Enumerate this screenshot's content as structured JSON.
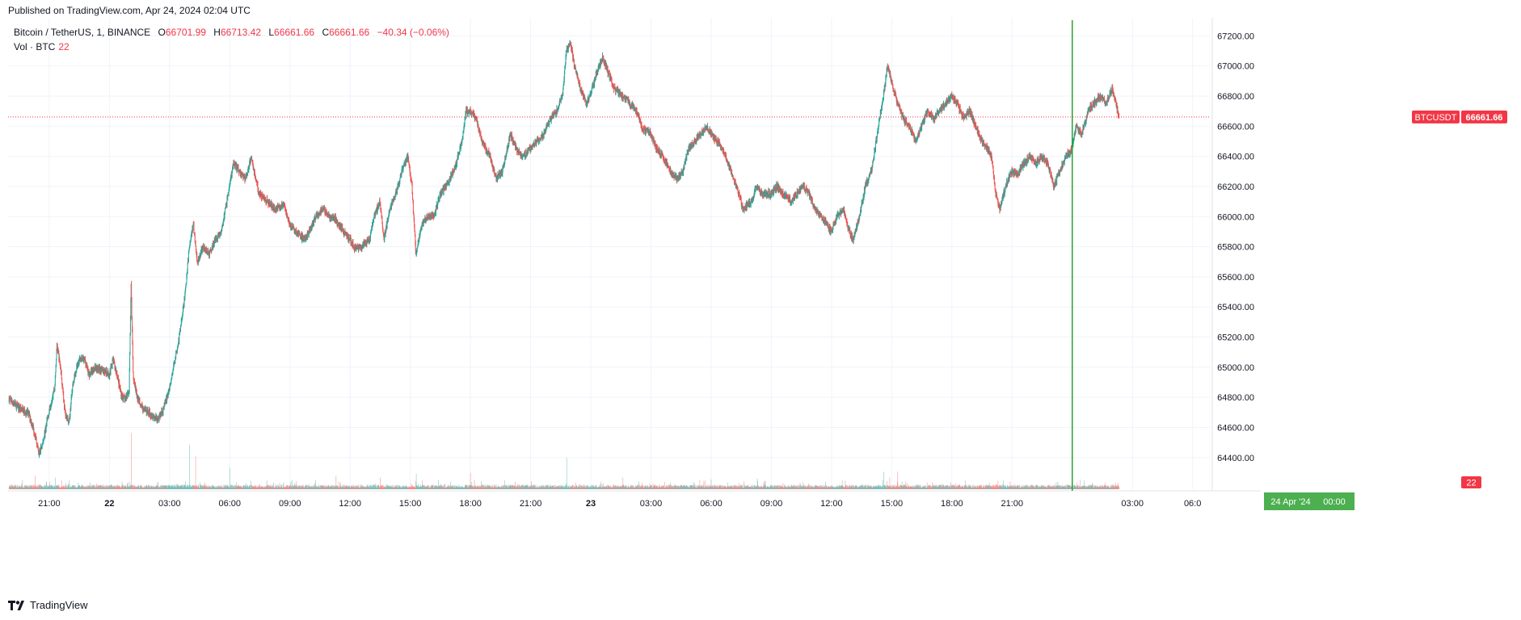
{
  "header": {
    "published": "Published on TradingView.com, Apr 24, 2024 02:04 UTC"
  },
  "legend": {
    "symbol": "Bitcoin / TetherUS, 1, BINANCE",
    "o_label": "O",
    "o": "66701.99",
    "h_label": "H",
    "h": "66713.42",
    "l_label": "L",
    "l": "66661.66",
    "c_label": "C",
    "c": "66661.66",
    "change": "−40.34 (−0.06%)",
    "vol_label": "Vol · BTC",
    "vol_value": "22"
  },
  "footer": {
    "brand": "TradingView"
  },
  "colors": {
    "up": "#26a69a",
    "down": "#ef5350",
    "grid": "#f0f3fa",
    "axis_text": "#131722",
    "price_line": "#f23645",
    "crosshair": "#2ba02b",
    "label_green": "#4caf50",
    "label_red": "#f23645"
  },
  "chart_data": {
    "type": "candlestick",
    "interval": "1m",
    "symbol": "BTCUSDT",
    "exchange": "BINANCE",
    "y_axis": {
      "ticks": [
        "67200.00",
        "67000.00",
        "66800.00",
        "66600.00",
        "66400.00",
        "66200.00",
        "66000.00",
        "65800.00",
        "65600.00",
        "65400.00",
        "65200.00",
        "65000.00",
        "64800.00",
        "64600.00",
        "64400.00"
      ],
      "ylim": [
        64190,
        67320
      ]
    },
    "x_axis": {
      "ticks": [
        {
          "label": "21:00",
          "hour": 21,
          "bold": false
        },
        {
          "label": "22",
          "hour": 24,
          "bold": true
        },
        {
          "label": "03:00",
          "hour": 27,
          "bold": false
        },
        {
          "label": "06:00",
          "hour": 30,
          "bold": false
        },
        {
          "label": "09:00",
          "hour": 33,
          "bold": false
        },
        {
          "label": "12:00",
          "hour": 36,
          "bold": false
        },
        {
          "label": "15:00",
          "hour": 39,
          "bold": false
        },
        {
          "label": "18:00",
          "hour": 42,
          "bold": false
        },
        {
          "label": "21:00",
          "hour": 45,
          "bold": false
        },
        {
          "label": "23",
          "hour": 48,
          "bold": true
        },
        {
          "label": "03:00",
          "hour": 51,
          "bold": false
        },
        {
          "label": "06:00",
          "hour": 54,
          "bold": false
        },
        {
          "label": "09:00",
          "hour": 57,
          "bold": false
        },
        {
          "label": "12:00",
          "hour": 60,
          "bold": false
        },
        {
          "label": "15:00",
          "hour": 63,
          "bold": false
        },
        {
          "label": "18:00",
          "hour": 66,
          "bold": false
        },
        {
          "label": "21:00",
          "hour": 69,
          "bold": false
        },
        {
          "label": "03:00",
          "hour": 75,
          "bold": false
        },
        {
          "label": "06:0",
          "hour": 78,
          "bold": false
        }
      ],
      "hour_range": [
        18.95,
        78.9
      ],
      "hour_unit": "hours since Apr 21 00:00 UTC"
    },
    "crosshair": {
      "hour": 72,
      "label_date": "24 Apr '24",
      "label_time": "00:00"
    },
    "last_price": {
      "symbol_label": "BTCUSDT",
      "value": 66661.66,
      "value_label": "66661.66"
    },
    "last_volume": {
      "label": "22"
    },
    "price_path": [
      [
        19.0,
        64790
      ],
      [
        19.5,
        64730
      ],
      [
        20.0,
        64690
      ],
      [
        20.3,
        64560
      ],
      [
        20.5,
        64420
      ],
      [
        20.7,
        64500
      ],
      [
        21.0,
        64700
      ],
      [
        21.3,
        64880
      ],
      [
        21.4,
        65150
      ],
      [
        21.6,
        64980
      ],
      [
        21.8,
        64700
      ],
      [
        22.0,
        64620
      ],
      [
        22.2,
        64900
      ],
      [
        22.5,
        65050
      ],
      [
        22.8,
        65050
      ],
      [
        23.0,
        64950
      ],
      [
        23.3,
        65000
      ],
      [
        23.7,
        64980
      ],
      [
        24.0,
        64950
      ],
      [
        24.2,
        65050
      ],
      [
        24.4,
        64950
      ],
      [
        24.6,
        64820
      ],
      [
        24.8,
        64780
      ],
      [
        25.0,
        64850
      ],
      [
        25.1,
        65550
      ],
      [
        25.2,
        64950
      ],
      [
        25.4,
        64800
      ],
      [
        25.7,
        64720
      ],
      [
        26.0,
        64700
      ],
      [
        26.4,
        64650
      ],
      [
        26.7,
        64720
      ],
      [
        27.0,
        64850
      ],
      [
        27.2,
        64990
      ],
      [
        27.5,
        65200
      ],
      [
        27.8,
        65500
      ],
      [
        28.0,
        65800
      ],
      [
        28.2,
        65950
      ],
      [
        28.4,
        65700
      ],
      [
        28.7,
        65800
      ],
      [
        29.0,
        65750
      ],
      [
        29.3,
        65850
      ],
      [
        29.6,
        65900
      ],
      [
        30.0,
        66200
      ],
      [
        30.2,
        66350
      ],
      [
        30.5,
        66300
      ],
      [
        30.8,
        66250
      ],
      [
        31.1,
        66400
      ],
      [
        31.3,
        66250
      ],
      [
        31.5,
        66150
      ],
      [
        31.9,
        66100
      ],
      [
        32.3,
        66050
      ],
      [
        32.7,
        66080
      ],
      [
        33.0,
        65950
      ],
      [
        33.3,
        65900
      ],
      [
        33.7,
        65850
      ],
      [
        34.0,
        65900
      ],
      [
        34.3,
        66000
      ],
      [
        34.7,
        66050
      ],
      [
        35.0,
        66000
      ],
      [
        35.3,
        65980
      ],
      [
        35.7,
        65900
      ],
      [
        36.0,
        65850
      ],
      [
        36.3,
        65780
      ],
      [
        36.6,
        65800
      ],
      [
        37.0,
        65850
      ],
      [
        37.2,
        66000
      ],
      [
        37.5,
        66100
      ],
      [
        37.7,
        65850
      ],
      [
        38.0,
        66050
      ],
      [
        38.3,
        66150
      ],
      [
        38.6,
        66300
      ],
      [
        38.9,
        66400
      ],
      [
        39.1,
        66200
      ],
      [
        39.3,
        65750
      ],
      [
        39.6,
        65950
      ],
      [
        39.9,
        66000
      ],
      [
        40.2,
        66000
      ],
      [
        40.5,
        66150
      ],
      [
        40.8,
        66200
      ],
      [
        41.0,
        66250
      ],
      [
        41.3,
        66350
      ],
      [
        41.6,
        66500
      ],
      [
        41.8,
        66700
      ],
      [
        42.0,
        66700
      ],
      [
        42.3,
        66650
      ],
      [
        42.6,
        66500
      ],
      [
        43.0,
        66400
      ],
      [
        43.3,
        66250
      ],
      [
        43.6,
        66300
      ],
      [
        43.8,
        66400
      ],
      [
        44.0,
        66550
      ],
      [
        44.3,
        66450
      ],
      [
        44.6,
        66400
      ],
      [
        45.0,
        66450
      ],
      [
        45.3,
        66500
      ],
      [
        45.7,
        66550
      ],
      [
        46.0,
        66650
      ],
      [
        46.3,
        66700
      ],
      [
        46.6,
        66800
      ],
      [
        46.8,
        67100
      ],
      [
        47.0,
        67150
      ],
      [
        47.2,
        67000
      ],
      [
        47.5,
        66850
      ],
      [
        47.8,
        66750
      ],
      [
        48.0,
        66800
      ],
      [
        48.3,
        66950
      ],
      [
        48.6,
        67050
      ],
      [
        48.9,
        66950
      ],
      [
        49.2,
        66850
      ],
      [
        49.6,
        66800
      ],
      [
        50.0,
        66750
      ],
      [
        50.3,
        66700
      ],
      [
        50.6,
        66580
      ],
      [
        51.0,
        66550
      ],
      [
        51.3,
        66450
      ],
      [
        51.6,
        66400
      ],
      [
        52.0,
        66300
      ],
      [
        52.3,
        66250
      ],
      [
        52.6,
        66300
      ],
      [
        52.9,
        66450
      ],
      [
        53.2,
        66500
      ],
      [
        53.5,
        66550
      ],
      [
        53.8,
        66600
      ],
      [
        54.0,
        66550
      ],
      [
        54.3,
        66500
      ],
      [
        54.6,
        66450
      ],
      [
        55.0,
        66300
      ],
      [
        55.3,
        66200
      ],
      [
        55.6,
        66050
      ],
      [
        56.0,
        66100
      ],
      [
        56.3,
        66200
      ],
      [
        56.6,
        66150
      ],
      [
        57.0,
        66150
      ],
      [
        57.3,
        66200
      ],
      [
        57.6,
        66150
      ],
      [
        58.0,
        66100
      ],
      [
        58.3,
        66150
      ],
      [
        58.6,
        66200
      ],
      [
        58.9,
        66150
      ],
      [
        59.2,
        66050
      ],
      [
        59.5,
        66000
      ],
      [
        59.8,
        65950
      ],
      [
        60.0,
        65900
      ],
      [
        60.3,
        66000
      ],
      [
        60.6,
        66050
      ],
      [
        60.9,
        65900
      ],
      [
        61.1,
        65850
      ],
      [
        61.4,
        66000
      ],
      [
        61.7,
        66200
      ],
      [
        62.0,
        66300
      ],
      [
        62.3,
        66550
      ],
      [
        62.6,
        66800
      ],
      [
        62.8,
        67000
      ],
      [
        63.0,
        66900
      ],
      [
        63.3,
        66750
      ],
      [
        63.6,
        66650
      ],
      [
        63.9,
        66600
      ],
      [
        64.2,
        66500
      ],
      [
        64.5,
        66600
      ],
      [
        64.8,
        66700
      ],
      [
        65.1,
        66650
      ],
      [
        65.4,
        66700
      ],
      [
        65.7,
        66750
      ],
      [
        66.0,
        66800
      ],
      [
        66.3,
        66750
      ],
      [
        66.6,
        66650
      ],
      [
        66.9,
        66700
      ],
      [
        67.2,
        66600
      ],
      [
        67.5,
        66500
      ],
      [
        67.8,
        66450
      ],
      [
        68.0,
        66400
      ],
      [
        68.2,
        66150
      ],
      [
        68.4,
        66050
      ],
      [
        68.7,
        66200
      ],
      [
        69.0,
        66300
      ],
      [
        69.3,
        66280
      ],
      [
        69.6,
        66350
      ],
      [
        69.9,
        66400
      ],
      [
        70.2,
        66350
      ],
      [
        70.5,
        66400
      ],
      [
        70.8,
        66350
      ],
      [
        71.1,
        66200
      ],
      [
        71.4,
        66300
      ],
      [
        71.7,
        66400
      ],
      [
        72.0,
        66450
      ],
      [
        72.2,
        66600
      ],
      [
        72.5,
        66550
      ],
      [
        72.8,
        66700
      ],
      [
        73.1,
        66750
      ],
      [
        73.4,
        66800
      ],
      [
        73.7,
        66750
      ],
      [
        74.0,
        66850
      ],
      [
        74.2,
        66750
      ],
      [
        74.35,
        66661
      ]
    ],
    "volume_spikes": [
      {
        "hour": 20.3,
        "vol": 14
      },
      {
        "hour": 21.3,
        "vol": 12
      },
      {
        "hour": 25.1,
        "vol": 58
      },
      {
        "hour": 28.0,
        "vol": 46
      },
      {
        "hour": 28.3,
        "vol": 34
      },
      {
        "hour": 30.0,
        "vol": 22
      },
      {
        "hour": 35.3,
        "vol": 14
      },
      {
        "hour": 37.5,
        "vol": 12
      },
      {
        "hour": 39.3,
        "vol": 16
      },
      {
        "hour": 42.0,
        "vol": 17
      },
      {
        "hour": 46.8,
        "vol": 32
      },
      {
        "hour": 49.6,
        "vol": 12
      },
      {
        "hour": 54.0,
        "vol": 10
      },
      {
        "hour": 56.3,
        "vol": 11
      },
      {
        "hour": 62.6,
        "vol": 18
      },
      {
        "hour": 62.9,
        "vol": 12
      },
      {
        "hour": 63.3,
        "vol": 15
      },
      {
        "hour": 68.3,
        "vol": 9
      },
      {
        "hour": 72.4,
        "vol": 10
      },
      {
        "hour": 72.6,
        "vol": 9
      }
    ]
  }
}
